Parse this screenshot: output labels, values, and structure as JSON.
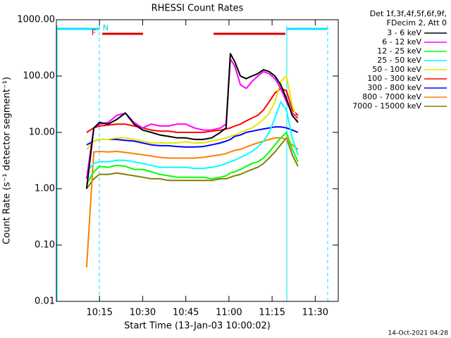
{
  "chart_data": {
    "type": "line",
    "title": "RHESSI Count Rates",
    "x_label": "Start Time (13-Jan-03 10:00:02)",
    "y_label": "Count Rate (s⁻¹ detector segment⁻¹)",
    "legend_header": [
      "Det 1f,3f,4f,5f,6f,9f,",
      "FDecim 2, Att 0"
    ],
    "annotations": [
      "F",
      "N"
    ],
    "timestamp": "14-Oct-2021 04:28",
    "log_y": true,
    "xlim": [
      0,
      98
    ],
    "ylim": [
      0.01,
      1000
    ],
    "xticks": [
      {
        "value": 15,
        "label": "10:15"
      },
      {
        "value": 30,
        "label": "10:30"
      },
      {
        "value": 45,
        "label": "10:45"
      },
      {
        "value": 60,
        "label": "11:00"
      },
      {
        "value": 75,
        "label": "11:15"
      },
      {
        "value": 90,
        "label": "11:30"
      }
    ],
    "yticks": [
      {
        "value": 0.01,
        "label": "0.01"
      },
      {
        "value": 0.1,
        "label": "0.10"
      },
      {
        "value": 1,
        "label": "1.00"
      },
      {
        "value": 10,
        "label": "10.00"
      },
      {
        "value": 100,
        "label": "100.00"
      },
      {
        "value": 1000,
        "label": "1000.00"
      }
    ],
    "x": [
      10.5,
      13,
      15,
      18,
      21,
      24,
      27,
      30,
      33,
      36,
      39,
      42,
      45,
      48,
      51,
      54,
      57,
      59,
      60.5,
      62,
      64,
      66,
      68,
      70,
      72,
      74,
      76,
      78,
      80,
      82,
      84
    ],
    "series": [
      {
        "name": "3 - 6 keV",
        "color": "#000000",
        "values": [
          1,
          12,
          15,
          14,
          17,
          22,
          14,
          11,
          10,
          9,
          8.5,
          8,
          8,
          7.5,
          7.5,
          8,
          10,
          12,
          250,
          180,
          100,
          90,
          100,
          110,
          130,
          120,
          100,
          70,
          40,
          20,
          15
        ]
      },
      {
        "name": "6 - 12 keV",
        "color": "#ff00ff",
        "values": [
          1.5,
          12,
          14,
          15,
          20,
          22,
          15,
          12,
          14,
          13,
          13,
          14,
          14,
          12,
          11,
          11,
          12,
          14,
          200,
          150,
          70,
          60,
          80,
          100,
          120,
          110,
          90,
          60,
          35,
          22,
          18
        ]
      },
      {
        "name": "12 - 25 keV",
        "color": "#00ff00",
        "values": [
          1.2,
          2,
          2.5,
          2.4,
          2.6,
          2.5,
          2.2,
          2.2,
          2,
          1.8,
          1.7,
          1.6,
          1.6,
          1.6,
          1.6,
          1.5,
          1.6,
          1.7,
          1.9,
          2,
          2.2,
          2.5,
          2.8,
          3,
          3.5,
          4.5,
          6,
          8,
          10,
          5,
          3
        ]
      },
      {
        "name": "25 - 50 keV",
        "color": "#00ffff",
        "values": [
          2,
          2.8,
          3,
          3,
          3.2,
          3.2,
          3,
          2.8,
          2.6,
          2.4,
          2.4,
          2.4,
          2.4,
          2.3,
          2.3,
          2.4,
          2.6,
          2.8,
          3,
          3.2,
          3.6,
          4,
          4.6,
          5.5,
          7,
          10,
          18,
          35,
          25,
          8,
          4
        ]
      },
      {
        "name": "50 - 100 keV",
        "color": "#e6e600",
        "values": [
          5,
          7,
          7.5,
          7.5,
          8,
          8,
          7.5,
          7,
          6.5,
          6.5,
          6.5,
          6.5,
          6.8,
          6.5,
          6.5,
          7,
          7.5,
          8,
          8.5,
          9,
          10,
          11,
          12,
          14,
          17,
          22,
          35,
          80,
          100,
          30,
          15
        ]
      },
      {
        "name": "100 - 300 keV",
        "color": "#ff0000",
        "values": [
          10,
          12,
          13,
          13.5,
          14,
          14,
          13,
          12,
          11,
          10.5,
          10.5,
          10,
          10,
          10,
          10,
          10.5,
          11,
          11.5,
          12,
          13,
          14,
          16,
          18,
          20,
          25,
          35,
          50,
          60,
          55,
          25,
          20
        ]
      },
      {
        "name": "300 - 800 keV",
        "color": "#0000ff",
        "values": [
          6,
          7,
          7.5,
          7.5,
          7.5,
          7.2,
          7,
          6.5,
          6,
          5.8,
          5.8,
          5.6,
          5.5,
          5.5,
          5.6,
          6,
          6.5,
          7,
          7.5,
          8.5,
          9,
          10,
          10.5,
          11,
          11.5,
          12,
          12.5,
          12.5,
          12,
          11,
          10
        ]
      },
      {
        "name": "800 - 7000 keV",
        "color": "#ff8000",
        "values": [
          0.04,
          4.5,
          4.6,
          4.5,
          4.6,
          4.4,
          4.2,
          4,
          3.8,
          3.6,
          3.5,
          3.5,
          3.5,
          3.5,
          3.6,
          3.8,
          4,
          4.2,
          4.5,
          4.8,
          5,
          5.5,
          6,
          6.5,
          7,
          7.5,
          8,
          8,
          7.5,
          6,
          5
        ]
      },
      {
        "name": "7000 - 15000 keV",
        "color": "#808000",
        "values": [
          1,
          1.5,
          1.8,
          1.8,
          1.9,
          1.8,
          1.7,
          1.6,
          1.5,
          1.5,
          1.4,
          1.4,
          1.4,
          1.4,
          1.4,
          1.4,
          1.5,
          1.5,
          1.6,
          1.7,
          1.8,
          2,
          2.2,
          2.4,
          2.8,
          3.5,
          4.5,
          6,
          8,
          4,
          2.5
        ]
      }
    ]
  }
}
